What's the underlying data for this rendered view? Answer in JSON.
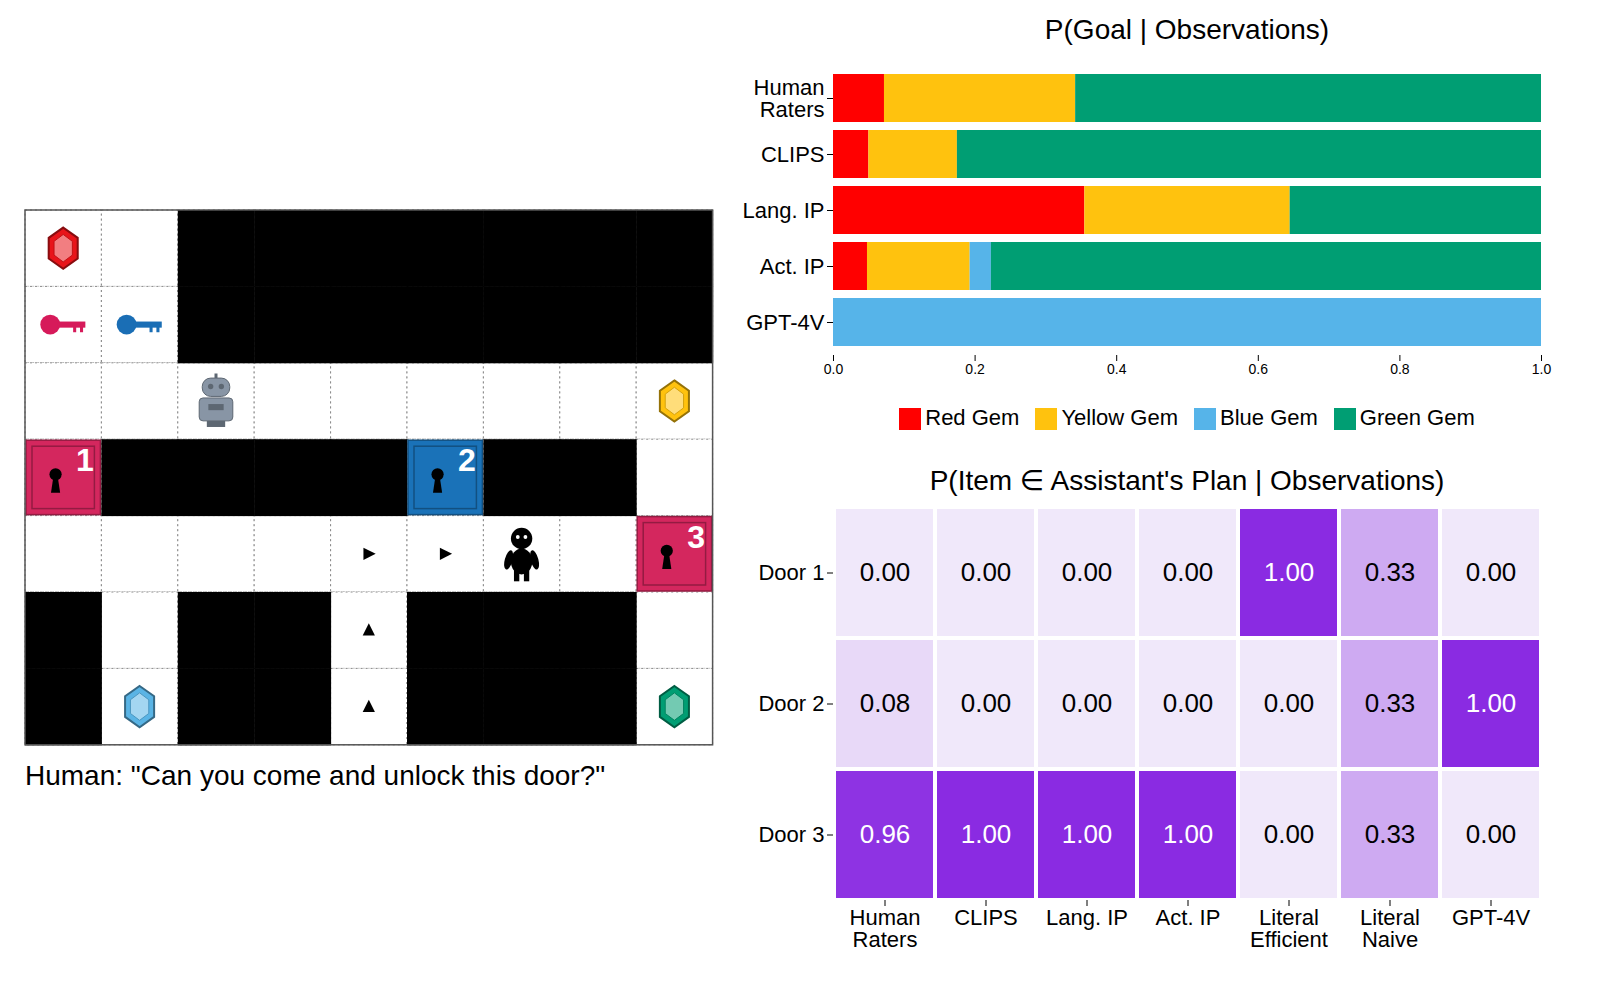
{
  "chart_data": [
    {
      "type": "bar",
      "title": "P(Goal | Observations)",
      "orientation": "horizontal",
      "stacked": true,
      "legend": "bottom",
      "categories": [
        "Human Raters",
        "CLIPS",
        "Lang. IP",
        "Act. IP",
        "GPT-4V"
      ],
      "series": [
        {
          "name": "Red Gem",
          "color": "#ff0000",
          "values": [
            0.072,
            0.05,
            0.355,
            0.048,
            0
          ]
        },
        {
          "name": "Yellow Gem",
          "color": "#ffc20e",
          "values": [
            0.27,
            0.125,
            0.29,
            0.145,
            0
          ]
        },
        {
          "name": "Blue Gem",
          "color": "#56b4e9",
          "values": [
            0,
            0,
            0,
            0.03,
            1
          ]
        },
        {
          "name": "Green Gem",
          "color": "#009e73",
          "values": [
            0.658,
            0.825,
            0.355,
            0.777,
            0
          ]
        }
      ],
      "xlim": [
        0,
        1
      ],
      "xticks": [
        {
          "value": 0,
          "label": "0.0"
        },
        0.2,
        0.4,
        0.6,
        0.8,
        {
          "value": 1,
          "label": "1.0"
        }
      ]
    },
    {
      "type": "heatmap",
      "title": "P(Item ∈ Assistant's Plan | Observations)",
      "x": [
        "Human Raters",
        "CLIPS",
        "Lang. IP",
        "Act. IP",
        "Literal Efficient",
        "Literal Naive",
        "GPT-4V"
      ],
      "y": [
        "Door 1",
        "Door 2",
        "Door 3"
      ],
      "values": [
        [
          0,
          0,
          0,
          0,
          1,
          0.33,
          0
        ],
        [
          0.08,
          0,
          0,
          0,
          0,
          0.33,
          1
        ],
        [
          0.96,
          1,
          1,
          1,
          0,
          0.33,
          0
        ]
      ],
      "value_labels": [
        [
          "0.00",
          "0.00",
          "0.00",
          "0.00",
          "1.00",
          "0.33",
          "0.00"
        ],
        [
          "0.08",
          "0.00",
          "0.00",
          "0.00",
          "0.00",
          "0.33",
          "1.00"
        ],
        [
          "0.96",
          "1.00",
          "1.00",
          "1.00",
          "0.00",
          "0.33",
          "0.00"
        ]
      ],
      "data_labels": true
    }
  ],
  "diagram": {
    "door_labels": [
      "1",
      "2",
      "3"
    ],
    "caption": "Human: \"Can you come and unlock this door?\""
  }
}
